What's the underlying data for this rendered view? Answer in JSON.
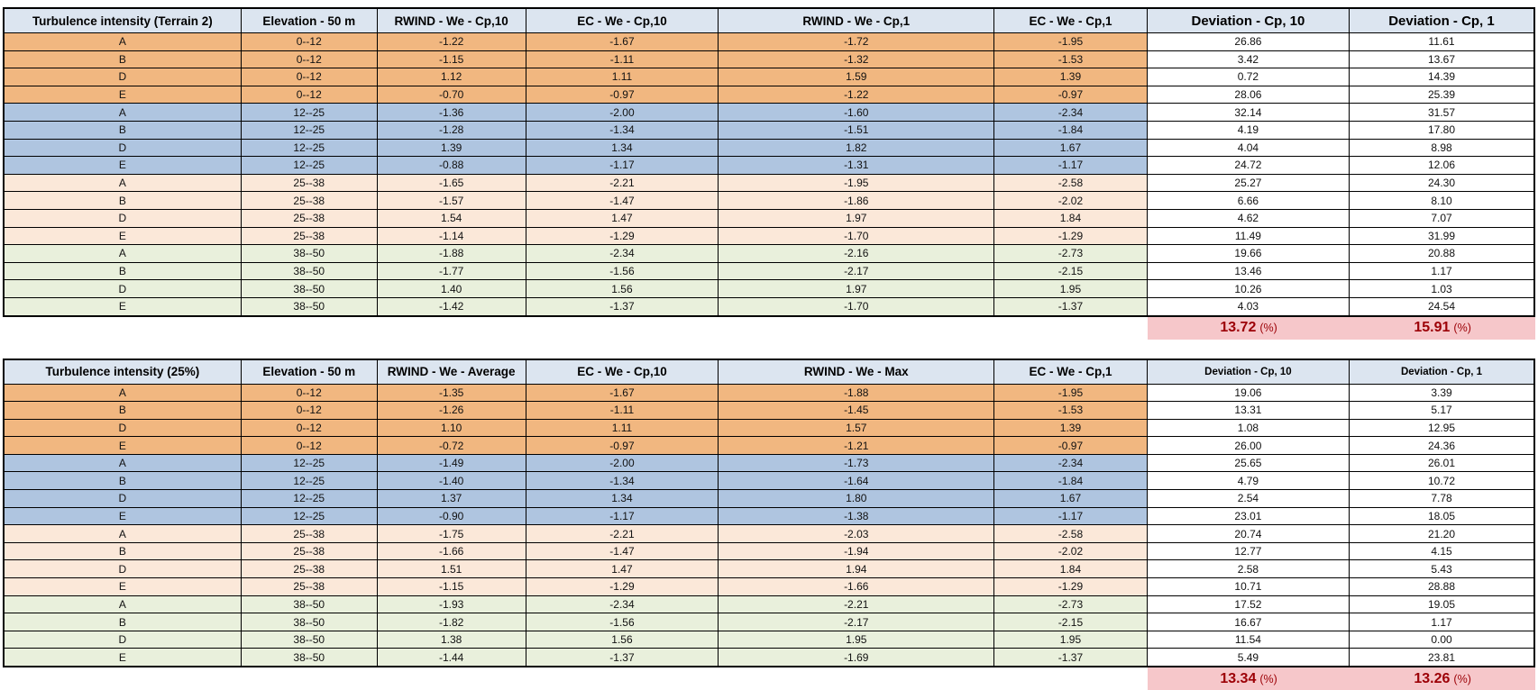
{
  "colors": {
    "band_orange": "#F1B780",
    "band_blue": "#AFC5E0",
    "band_peach": "#FBE8D9",
    "band_green": "#E9F0DC",
    "header_bg": "#DCE5F0",
    "deviation_bg": "#FFFFFF",
    "summary_bg": "#F6C7CA",
    "summary_text": "#9C0006",
    "border": "#000000"
  },
  "tables": [
    {
      "title": "Turbulence intensity (Terrain 2)",
      "headers": [
        "Turbulence intensity (Terrain 2)",
        "Elevation - 50 m",
        "RWIND - We - Cp,10",
        "EC - We - Cp,10",
        "RWIND - We - Cp,1",
        "EC - We - Cp,1",
        "Deviation - Cp, 10",
        "Deviation - Cp, 1"
      ],
      "dev_header_size": "large",
      "rows": [
        {
          "label": "A",
          "elevation": "0--12",
          "band": "orange",
          "values": [
            "-1.22",
            "-1.67",
            "-1.72",
            "-1.95",
            "26.86",
            "11.61"
          ]
        },
        {
          "label": "B",
          "elevation": "0--12",
          "band": "orange",
          "values": [
            "-1.15",
            "-1.11",
            "-1.32",
            "-1.53",
            "3.42",
            "13.67"
          ]
        },
        {
          "label": "D",
          "elevation": "0--12",
          "band": "orange",
          "values": [
            "1.12",
            "1.11",
            "1.59",
            "1.39",
            "0.72",
            "14.39"
          ]
        },
        {
          "label": "E",
          "elevation": "0--12",
          "band": "orange",
          "values": [
            "-0.70",
            "-0.97",
            "-1.22",
            "-0.97",
            "28.06",
            "25.39"
          ]
        },
        {
          "label": "A",
          "elevation": "12--25",
          "band": "blue",
          "values": [
            "-1.36",
            "-2.00",
            "-1.60",
            "-2.34",
            "32.14",
            "31.57"
          ]
        },
        {
          "label": "B",
          "elevation": "12--25",
          "band": "blue",
          "values": [
            "-1.28",
            "-1.34",
            "-1.51",
            "-1.84",
            "4.19",
            "17.80"
          ]
        },
        {
          "label": "D",
          "elevation": "12--25",
          "band": "blue",
          "values": [
            "1.39",
            "1.34",
            "1.82",
            "1.67",
            "4.04",
            "8.98"
          ]
        },
        {
          "label": "E",
          "elevation": "12--25",
          "band": "blue",
          "values": [
            "-0.88",
            "-1.17",
            "-1.31",
            "-1.17",
            "24.72",
            "12.06"
          ]
        },
        {
          "label": "A",
          "elevation": "25--38",
          "band": "peach",
          "values": [
            "-1.65",
            "-2.21",
            "-1.95",
            "-2.58",
            "25.27",
            "24.30"
          ]
        },
        {
          "label": "B",
          "elevation": "25--38",
          "band": "peach",
          "values": [
            "-1.57",
            "-1.47",
            "-1.86",
            "-2.02",
            "6.66",
            "8.10"
          ]
        },
        {
          "label": "D",
          "elevation": "25--38",
          "band": "peach",
          "values": [
            "1.54",
            "1.47",
            "1.97",
            "1.84",
            "4.62",
            "7.07"
          ]
        },
        {
          "label": "E",
          "elevation": "25--38",
          "band": "peach",
          "values": [
            "-1.14",
            "-1.29",
            "-1.70",
            "-1.29",
            "11.49",
            "31.99"
          ]
        },
        {
          "label": "A",
          "elevation": "38--50",
          "band": "green",
          "values": [
            "-1.88",
            "-2.34",
            "-2.16",
            "-2.73",
            "19.66",
            "20.88"
          ]
        },
        {
          "label": "B",
          "elevation": "38--50",
          "band": "green",
          "values": [
            "-1.77",
            "-1.56",
            "-2.17",
            "-2.15",
            "13.46",
            "1.17"
          ]
        },
        {
          "label": "D",
          "elevation": "38--50",
          "band": "green",
          "values": [
            "1.40",
            "1.56",
            "1.97",
            "1.95",
            "10.26",
            "1.03"
          ]
        },
        {
          "label": "E",
          "elevation": "38--50",
          "band": "green",
          "values": [
            "-1.42",
            "-1.37",
            "-1.70",
            "-1.37",
            "4.03",
            "24.54"
          ]
        }
      ],
      "summary": {
        "dev_cp10": "13.72",
        "dev_cp1": "15.91",
        "unit": "(%)"
      }
    },
    {
      "title": "Turbulence intensity (25%)",
      "headers": [
        "Turbulence intensity (25%)",
        "Elevation - 50 m",
        "RWIND - We - Average",
        "EC - We - Cp,10",
        "RWIND - We - Max",
        "EC - We - Cp,1",
        "Deviation - Cp, 10",
        "Deviation - Cp, 1"
      ],
      "dev_header_size": "small",
      "rows": [
        {
          "label": "A",
          "elevation": "0--12",
          "band": "orange",
          "values": [
            "-1.35",
            "-1.67",
            "-1.88",
            "-1.95",
            "19.06",
            "3.39"
          ]
        },
        {
          "label": "B",
          "elevation": "0--12",
          "band": "orange",
          "values": [
            "-1.26",
            "-1.11",
            "-1.45",
            "-1.53",
            "13.31",
            "5.17"
          ]
        },
        {
          "label": "D",
          "elevation": "0--12",
          "band": "orange",
          "values": [
            "1.10",
            "1.11",
            "1.57",
            "1.39",
            "1.08",
            "12.95"
          ]
        },
        {
          "label": "E",
          "elevation": "0--12",
          "band": "orange",
          "values": [
            "-0.72",
            "-0.97",
            "-1.21",
            "-0.97",
            "26.00",
            "24.36"
          ]
        },
        {
          "label": "A",
          "elevation": "12--25",
          "band": "blue",
          "values": [
            "-1.49",
            "-2.00",
            "-1.73",
            "-2.34",
            "25.65",
            "26.01"
          ]
        },
        {
          "label": "B",
          "elevation": "12--25",
          "band": "blue",
          "values": [
            "-1.40",
            "-1.34",
            "-1.64",
            "-1.84",
            "4.79",
            "10.72"
          ]
        },
        {
          "label": "D",
          "elevation": "12--25",
          "band": "blue",
          "values": [
            "1.37",
            "1.34",
            "1.80",
            "1.67",
            "2.54",
            "7.78"
          ]
        },
        {
          "label": "E",
          "elevation": "12--25",
          "band": "blue",
          "values": [
            "-0.90",
            "-1.17",
            "-1.38",
            "-1.17",
            "23.01",
            "18.05"
          ]
        },
        {
          "label": "A",
          "elevation": "25--38",
          "band": "peach",
          "values": [
            "-1.75",
            "-2.21",
            "-2.03",
            "-2.58",
            "20.74",
            "21.20"
          ]
        },
        {
          "label": "B",
          "elevation": "25--38",
          "band": "peach",
          "values": [
            "-1.66",
            "-1.47",
            "-1.94",
            "-2.02",
            "12.77",
            "4.15"
          ]
        },
        {
          "label": "D",
          "elevation": "25--38",
          "band": "peach",
          "values": [
            "1.51",
            "1.47",
            "1.94",
            "1.84",
            "2.58",
            "5.43"
          ]
        },
        {
          "label": "E",
          "elevation": "25--38",
          "band": "peach",
          "values": [
            "-1.15",
            "-1.29",
            "-1.66",
            "-1.29",
            "10.71",
            "28.88"
          ]
        },
        {
          "label": "A",
          "elevation": "38--50",
          "band": "green",
          "values": [
            "-1.93",
            "-2.34",
            "-2.21",
            "-2.73",
            "17.52",
            "19.05"
          ]
        },
        {
          "label": "B",
          "elevation": "38--50",
          "band": "green",
          "values": [
            "-1.82",
            "-1.56",
            "-2.17",
            "-2.15",
            "16.67",
            "1.17"
          ]
        },
        {
          "label": "D",
          "elevation": "38--50",
          "band": "green",
          "values": [
            "1.38",
            "1.56",
            "1.95",
            "1.95",
            "11.54",
            "0.00"
          ]
        },
        {
          "label": "E",
          "elevation": "38--50",
          "band": "green",
          "values": [
            "-1.44",
            "-1.37",
            "-1.69",
            "-1.37",
            "5.49",
            "23.81"
          ]
        }
      ],
      "summary": {
        "dev_cp10": "13.34",
        "dev_cp1": "13.26",
        "unit": "(%)"
      }
    }
  ]
}
